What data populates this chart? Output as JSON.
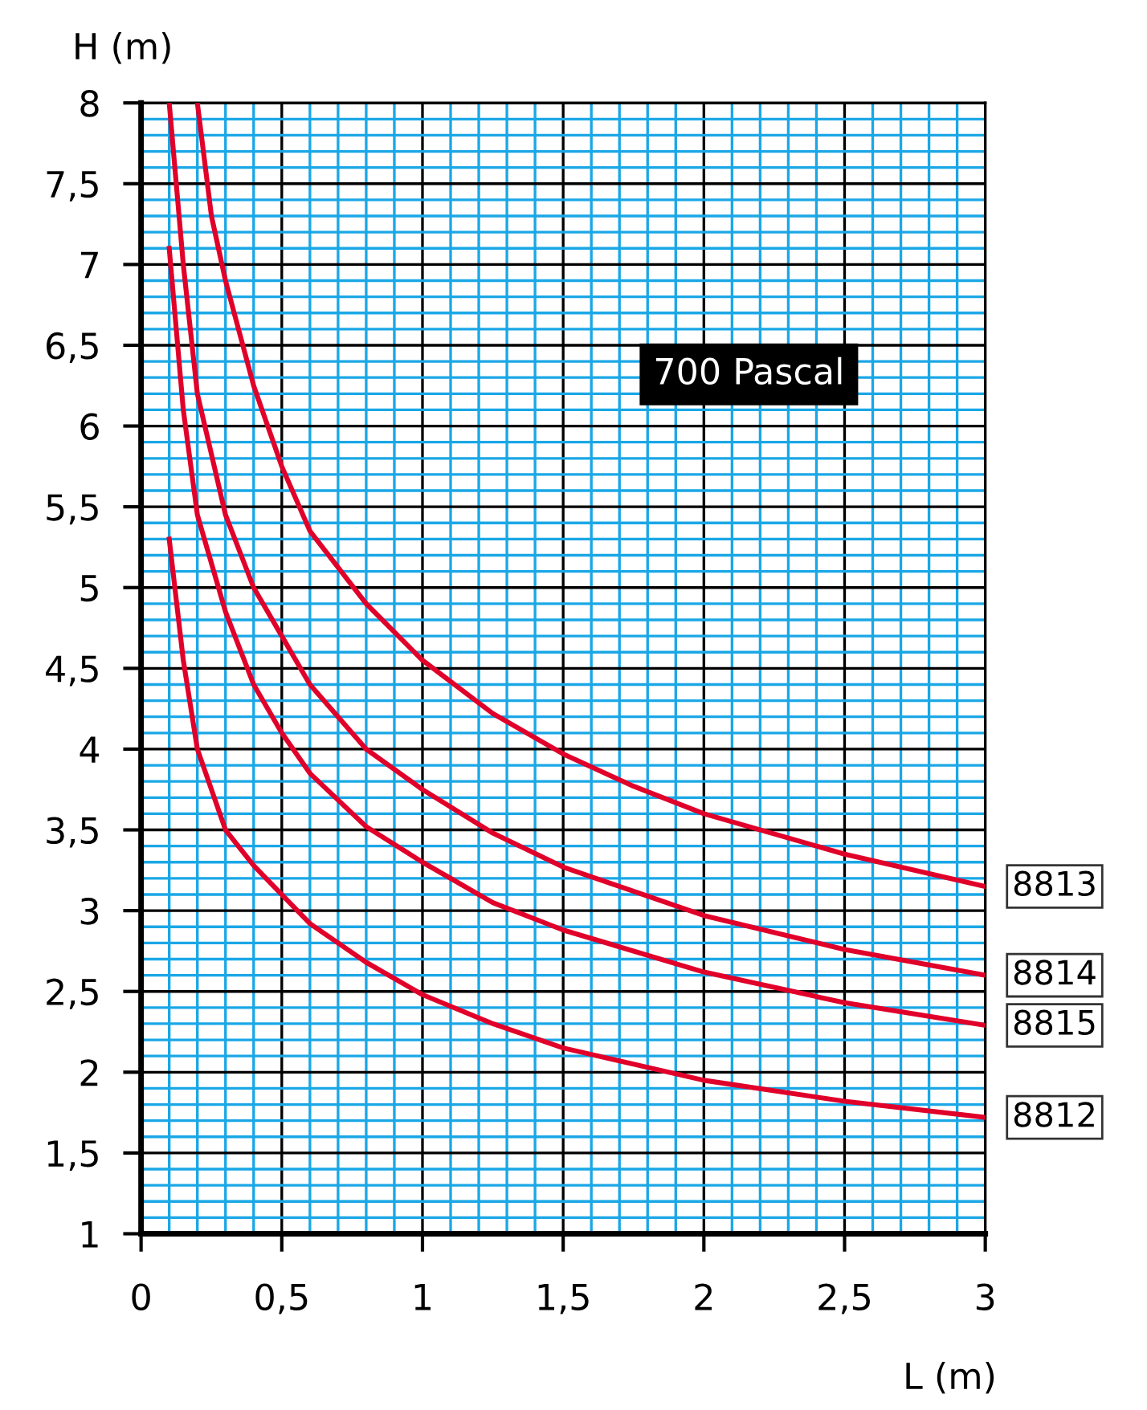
{
  "chart_data": {
    "type": "line",
    "xlabel": "L (m)",
    "ylabel": "H (m)",
    "annotations": [
      "700 Pascal"
    ],
    "xlim": [
      0,
      3
    ],
    "ylim": [
      1,
      8
    ],
    "xticks": [
      0,
      {
        "value": 0.1,
        "label": null
      },
      {
        "value": 0.2,
        "label": null
      },
      {
        "value": 0.3,
        "label": null
      },
      {
        "value": 0.4,
        "label": null
      },
      {
        "value": 0.5,
        "label": "0,5"
      },
      {
        "value": 0.6,
        "label": null
      },
      {
        "value": 0.7,
        "label": null
      },
      {
        "value": 0.8,
        "label": null
      },
      {
        "value": 0.9,
        "label": null
      },
      1,
      {
        "value": 1.1,
        "label": null
      },
      {
        "value": 1.2,
        "label": null
      },
      {
        "value": 1.3,
        "label": null
      },
      {
        "value": 1.4,
        "label": null
      },
      {
        "value": 1.5,
        "label": "1,5"
      },
      {
        "value": 1.6,
        "label": null
      },
      {
        "value": 1.7,
        "label": null
      },
      {
        "value": 1.8,
        "label": null
      },
      {
        "value": 1.9,
        "label": null
      },
      2,
      {
        "value": 2.1,
        "label": null
      },
      {
        "value": 2.2,
        "label": null
      },
      {
        "value": 2.3,
        "label": null
      },
      {
        "value": 2.4,
        "label": null
      },
      {
        "value": 2.5,
        "label": "2,5"
      },
      {
        "value": 2.6,
        "label": null
      },
      {
        "value": 2.7,
        "label": null
      },
      {
        "value": 2.8,
        "label": null
      },
      {
        "value": 2.9,
        "label": null
      },
      3
    ],
    "yticks": [
      1,
      {
        "value": 1.1,
        "label": null
      },
      {
        "value": 1.2,
        "label": null
      },
      {
        "value": 1.3,
        "label": null
      },
      {
        "value": 1.4,
        "label": null
      },
      {
        "value": 1.5,
        "label": "1,5"
      },
      {
        "value": 1.6,
        "label": null
      },
      {
        "value": 1.7,
        "label": null
      },
      {
        "value": 1.8,
        "label": null
      },
      {
        "value": 1.9,
        "label": null
      },
      2,
      {
        "value": 2.1,
        "label": null
      },
      {
        "value": 2.2,
        "label": null
      },
      {
        "value": 2.3,
        "label": null
      },
      {
        "value": 2.4,
        "label": null
      },
      {
        "value": 2.5,
        "label": "2,5"
      },
      {
        "value": 2.6,
        "label": null
      },
      {
        "value": 2.7,
        "label": null
      },
      {
        "value": 2.8,
        "label": null
      },
      {
        "value": 2.9,
        "label": null
      },
      3,
      {
        "value": 3.1,
        "label": null
      },
      {
        "value": 3.2,
        "label": null
      },
      {
        "value": 3.3,
        "label": null
      },
      {
        "value": 3.4,
        "label": null
      },
      {
        "value": 3.5,
        "label": "3,5"
      },
      {
        "value": 3.6,
        "label": null
      },
      {
        "value": 3.7,
        "label": null
      },
      {
        "value": 3.8,
        "label": null
      },
      {
        "value": 3.9,
        "label": null
      },
      4,
      {
        "value": 4.1,
        "label": null
      },
      {
        "value": 4.2,
        "label": null
      },
      {
        "value": 4.3,
        "label": null
      },
      {
        "value": 4.4,
        "label": null
      },
      {
        "value": 4.5,
        "label": "4,5"
      },
      {
        "value": 4.6,
        "label": null
      },
      {
        "value": 4.7,
        "label": null
      },
      {
        "value": 4.8,
        "label": null
      },
      {
        "value": 4.9,
        "label": null
      },
      5,
      {
        "value": 5.1,
        "label": null
      },
      {
        "value": 5.2,
        "label": null
      },
      {
        "value": 5.3,
        "label": null
      },
      {
        "value": 5.4,
        "label": null
      },
      {
        "value": 5.5,
        "label": "5,5"
      },
      {
        "value": 5.6,
        "label": null
      },
      {
        "value": 5.7,
        "label": null
      },
      {
        "value": 5.8,
        "label": null
      },
      {
        "value": 5.9,
        "label": null
      },
      6,
      {
        "value": 6.1,
        "label": null
      },
      {
        "value": 6.2,
        "label": null
      },
      {
        "value": 6.3,
        "label": null
      },
      {
        "value": 6.4,
        "label": null
      },
      {
        "value": 6.5,
        "label": "6,5"
      },
      {
        "value": 6.6,
        "label": null
      },
      {
        "value": 6.7,
        "label": null
      },
      {
        "value": 6.8,
        "label": null
      },
      {
        "value": 6.9,
        "label": null
      },
      7,
      {
        "value": 7.1,
        "label": null
      },
      {
        "value": 7.2,
        "label": null
      },
      {
        "value": 7.3,
        "label": null
      },
      {
        "value": 7.4,
        "label": null
      },
      {
        "value": 7.5,
        "label": "7,5"
      },
      {
        "value": 7.6,
        "label": null
      },
      {
        "value": 7.7,
        "label": null
      },
      {
        "value": 7.8,
        "label": null
      },
      {
        "value": 7.9,
        "label": null
      },
      8
    ],
    "grid": true,
    "marker": "none",
    "line_style": "solid",
    "series": [
      {
        "name": "8813",
        "color": "#e0002a",
        "x": [
          0.2,
          0.25,
          0.3,
          0.4,
          0.5,
          0.6,
          0.8,
          1,
          1.25,
          1.5,
          1.75,
          2,
          2.5,
          3
        ],
        "values": [
          8,
          7.3,
          6.9,
          6.25,
          5.75,
          5.35,
          4.9,
          4.55,
          4.22,
          3.97,
          3.77,
          3.6,
          3.35,
          3.15
        ]
      },
      {
        "name": "8814",
        "color": "#e0002a",
        "x": [
          0.1,
          0.15,
          0.2,
          0.3,
          0.4,
          0.5,
          0.6,
          0.8,
          1,
          1.25,
          1.5,
          2,
          2.5,
          3
        ],
        "values": [
          8,
          7.0,
          6.2,
          5.45,
          5.0,
          4.7,
          4.4,
          4.0,
          3.75,
          3.48,
          3.27,
          2.97,
          2.76,
          2.6
        ]
      },
      {
        "name": "8815",
        "color": "#e0002a",
        "x": [
          0.1,
          0.15,
          0.2,
          0.3,
          0.4,
          0.5,
          0.6,
          0.8,
          1,
          1.25,
          1.5,
          2,
          2.5,
          3
        ],
        "values": [
          7.1,
          6.1,
          5.45,
          4.85,
          4.4,
          4.1,
          3.85,
          3.52,
          3.3,
          3.05,
          2.88,
          2.62,
          2.43,
          2.29
        ]
      },
      {
        "name": "8812",
        "color": "#e0002a",
        "x": [
          0.1,
          0.15,
          0.2,
          0.3,
          0.4,
          0.5,
          0.6,
          0.8,
          1,
          1.25,
          1.5,
          2,
          2.5,
          3
        ],
        "values": [
          5.3,
          4.55,
          4.0,
          3.5,
          3.28,
          3.1,
          2.92,
          2.68,
          2.48,
          2.3,
          2.15,
          1.95,
          1.82,
          1.72
        ]
      }
    ]
  }
}
